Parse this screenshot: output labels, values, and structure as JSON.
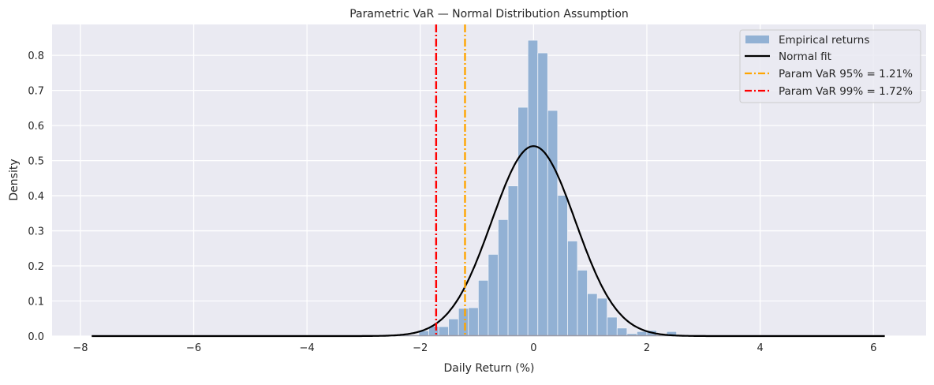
{
  "chart_data": {
    "type": "bar",
    "title": "Parametric VaR — Normal Distribution Assumption",
    "xlabel": "Daily Return (%)",
    "ylabel": "Density",
    "xlim": [
      -8.5,
      6.93
    ],
    "ylim": [
      0,
      0.888
    ],
    "xticks": [
      -8,
      -6,
      -4,
      -2,
      0,
      2,
      4,
      6
    ],
    "xtick_labels": [
      "−8",
      "−6",
      "−4",
      "−2",
      "0",
      "2",
      "4",
      "6"
    ],
    "yticks": [
      0,
      0.1,
      0.2,
      0.3,
      0.4,
      0.5,
      0.6,
      0.7,
      0.8
    ],
    "ytick_labels": [
      "0.0",
      "0.1",
      "0.2",
      "0.3",
      "0.4",
      "0.5",
      "0.6",
      "0.7",
      "0.8"
    ],
    "grid": true,
    "legend_position": "top-right",
    "histogram": {
      "name": "Empirical returns",
      "color": "#92b1d4",
      "range": [
        -7.8,
        6.2
      ],
      "bin_width": 0.175,
      "bins": [
        {
          "x0": -2.025,
          "density": 0.015
        },
        {
          "x0": -1.85,
          "density": 0.028
        },
        {
          "x0": -1.675,
          "density": 0.027
        },
        {
          "x0": -1.5,
          "density": 0.049
        },
        {
          "x0": -1.325,
          "density": 0.079
        },
        {
          "x0": -1.15,
          "density": 0.081
        },
        {
          "x0": -0.975,
          "density": 0.159
        },
        {
          "x0": -0.8,
          "density": 0.233
        },
        {
          "x0": -0.625,
          "density": 0.332
        },
        {
          "x0": -0.45,
          "density": 0.428
        },
        {
          "x0": -0.275,
          "density": 0.652
        },
        {
          "x0": -0.1,
          "density": 0.843
        },
        {
          "x0": 0.075,
          "density": 0.807
        },
        {
          "x0": 0.25,
          "density": 0.643
        },
        {
          "x0": 0.425,
          "density": 0.401
        },
        {
          "x0": 0.6,
          "density": 0.271
        },
        {
          "x0": 0.775,
          "density": 0.188
        },
        {
          "x0": 0.95,
          "density": 0.121
        },
        {
          "x0": 1.125,
          "density": 0.108
        },
        {
          "x0": 1.3,
          "density": 0.054
        },
        {
          "x0": 1.475,
          "density": 0.023
        },
        {
          "x0": 1.65,
          "density": 0.007
        },
        {
          "x0": 1.825,
          "density": 0.013
        },
        {
          "x0": 2.0,
          "density": 0.016
        },
        {
          "x0": 2.35,
          "density": 0.013
        }
      ]
    },
    "normal_fit": {
      "name": "Normal fit",
      "color": "#000000",
      "mean": 0.0,
      "std": 0.737
    },
    "vlines": [
      {
        "name": "Param VaR 95% = 1.21%",
        "x": -1.21,
        "color": "#ffa500"
      },
      {
        "name": "Param VaR 99% = 1.72%",
        "x": -1.72,
        "color": "#ff0000"
      }
    ]
  }
}
